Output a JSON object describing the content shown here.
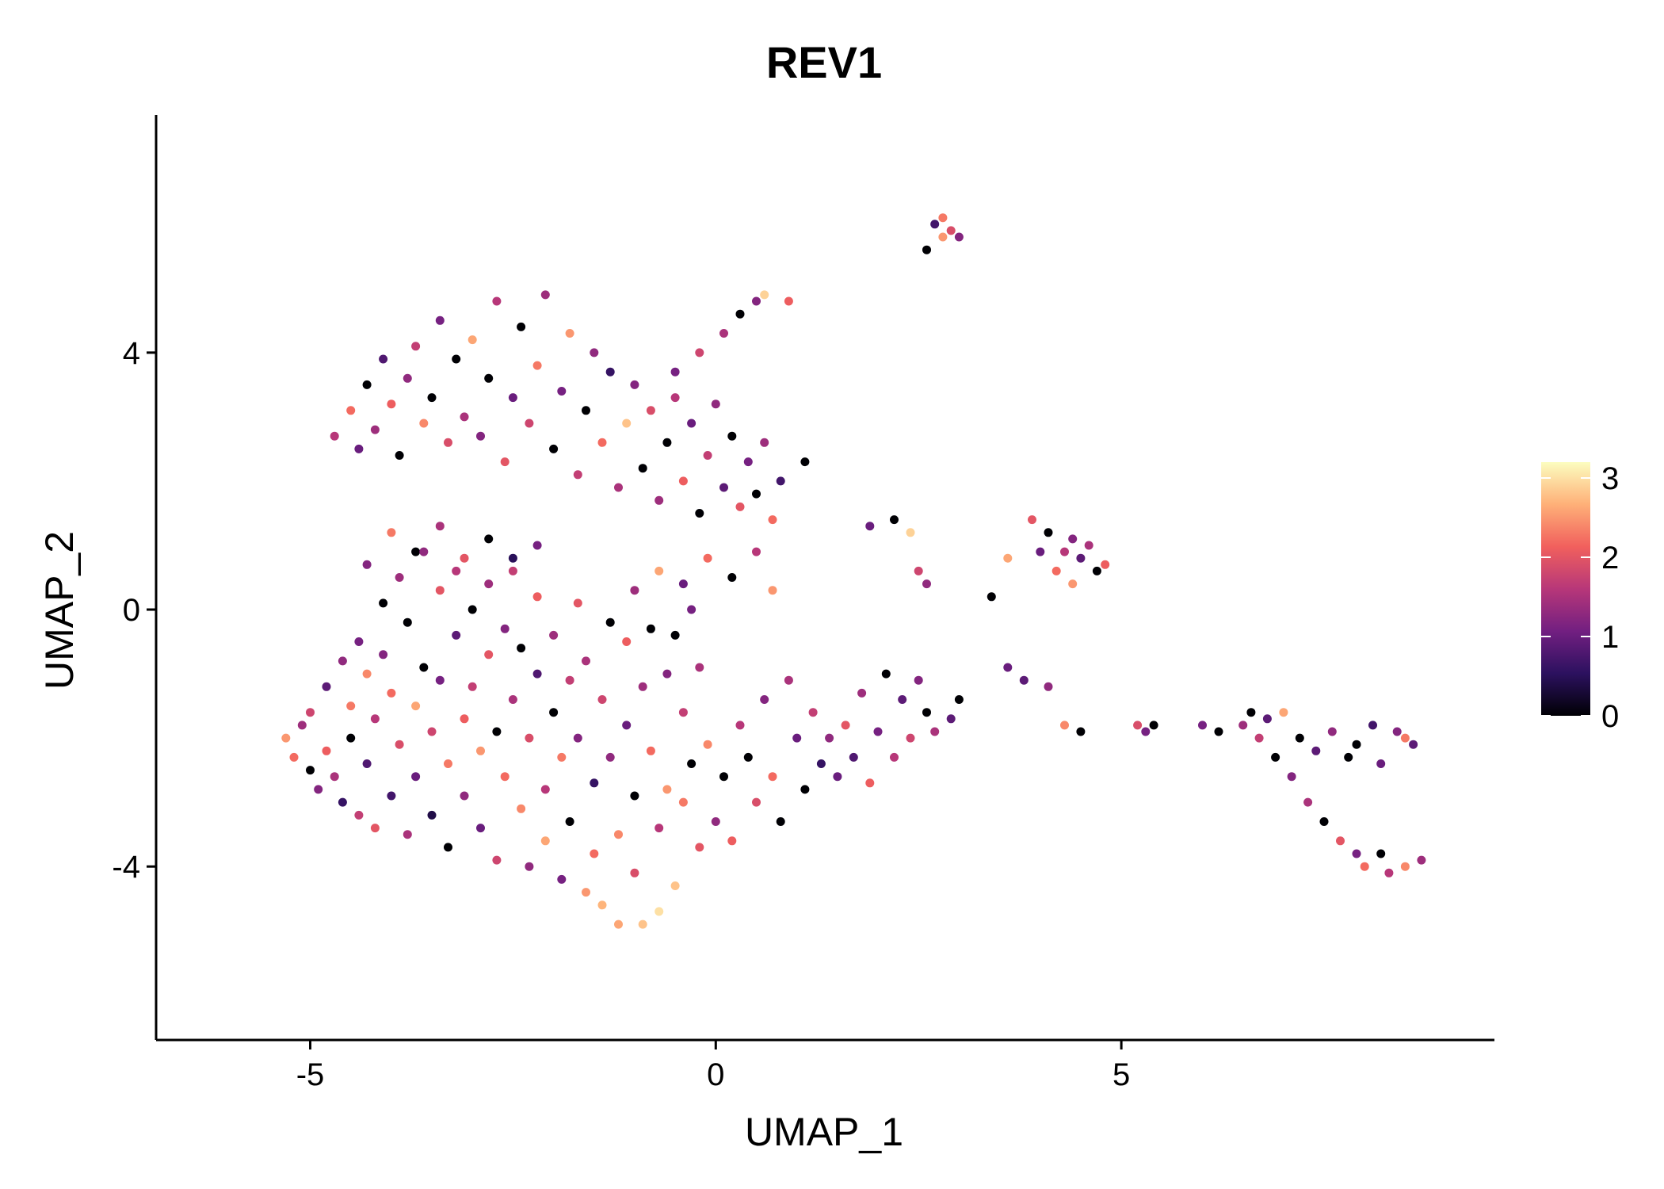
{
  "chart_data": {
    "type": "scatter",
    "title": "REV1",
    "xlabel": "UMAP_1",
    "ylabel": "UMAP_2",
    "xlim": [
      -6.9,
      9.6
    ],
    "ylim": [
      -6.7,
      7.7
    ],
    "x_ticks": [
      -5,
      0,
      5
    ],
    "x_tick_labels": [
      "-5",
      "0",
      "5"
    ],
    "y_ticks": [
      -4,
      0,
      4
    ],
    "y_tick_labels": [
      "-4",
      "0",
      "4"
    ],
    "grid": false,
    "legend": {
      "position": "right",
      "type": "colorbar",
      "min": 0,
      "max": 3.2,
      "ticks": [
        0,
        1,
        2,
        3
      ],
      "tick_labels": [
        "0",
        "1",
        "2",
        "3"
      ],
      "palette": [
        "#000004",
        "#2c115f",
        "#721f81",
        "#b73779",
        "#f1605d",
        "#feb078",
        "#fcfdbf"
      ]
    },
    "point_color_encoding": "expression level (0–3.2)",
    "points": [
      [
        -5.3,
        -2.0,
        2.5
      ],
      [
        -5.2,
        -2.3,
        2.2
      ],
      [
        -5.1,
        -1.8,
        1.4
      ],
      [
        -5.0,
        -2.5,
        0.0
      ],
      [
        -5.0,
        -1.6,
        1.8
      ],
      [
        -4.9,
        -2.8,
        1.2
      ],
      [
        -4.8,
        -2.2,
        2.1
      ],
      [
        -4.8,
        -1.2,
        0.9
      ],
      [
        -4.7,
        -2.6,
        1.5
      ],
      [
        -4.6,
        -3.0,
        0.6
      ],
      [
        -4.6,
        -0.8,
        1.3
      ],
      [
        -4.5,
        -1.5,
        2.3
      ],
      [
        -4.5,
        -2.0,
        0.0
      ],
      [
        -4.4,
        -3.2,
        1.7
      ],
      [
        -4.4,
        -0.5,
        1.1
      ],
      [
        -4.3,
        -1.0,
        2.4
      ],
      [
        -4.3,
        -2.4,
        0.8
      ],
      [
        -4.2,
        -1.7,
        1.6
      ],
      [
        -4.2,
        -3.4,
        2.0
      ],
      [
        -4.1,
        0.1,
        0.0
      ],
      [
        -4.1,
        -0.7,
        1.2
      ],
      [
        -4.0,
        -1.3,
        2.2
      ],
      [
        -4.0,
        -2.9,
        0.7
      ],
      [
        -3.9,
        -2.1,
        1.9
      ],
      [
        -3.9,
        0.5,
        1.4
      ],
      [
        -3.8,
        -0.2,
        0.0
      ],
      [
        -3.8,
        -3.5,
        1.5
      ],
      [
        -3.7,
        -1.5,
        2.6
      ],
      [
        -3.7,
        -2.6,
        1.0
      ],
      [
        -3.6,
        0.9,
        1.3
      ],
      [
        -3.6,
        -0.9,
        0.0
      ],
      [
        -3.5,
        -1.9,
        1.8
      ],
      [
        -3.5,
        -3.2,
        0.4
      ],
      [
        -3.4,
        0.3,
        2.0
      ],
      [
        -3.4,
        -1.1,
        1.1
      ],
      [
        -3.3,
        -2.4,
        2.3
      ],
      [
        -3.3,
        -3.7,
        0.0
      ],
      [
        -3.2,
        0.6,
        1.6
      ],
      [
        -3.2,
        -0.4,
        0.9
      ],
      [
        -3.1,
        -1.7,
        2.1
      ],
      [
        -3.1,
        -2.9,
        1.3
      ],
      [
        -3.0,
        0.0,
        0.0
      ],
      [
        -3.0,
        -1.2,
        1.7
      ],
      [
        -2.9,
        -2.2,
        2.5
      ],
      [
        -2.9,
        -3.4,
        1.0
      ],
      [
        -2.8,
        0.4,
        1.4
      ],
      [
        -2.8,
        -0.7,
        2.0
      ],
      [
        -2.7,
        -1.9,
        0.0
      ],
      [
        -2.7,
        -3.9,
        1.8
      ],
      [
        -2.6,
        -0.3,
        1.2
      ],
      [
        -2.6,
        -2.6,
        2.2
      ],
      [
        -2.5,
        0.8,
        0.5
      ],
      [
        -2.5,
        -1.4,
        1.5
      ],
      [
        -2.4,
        -3.1,
        2.4
      ],
      [
        -2.4,
        -0.6,
        0.0
      ],
      [
        -2.3,
        -2.0,
        1.9
      ],
      [
        -2.3,
        -4.0,
        1.3
      ],
      [
        -2.2,
        0.2,
        2.1
      ],
      [
        -2.2,
        -1.0,
        0.8
      ],
      [
        -2.1,
        -2.8,
        1.6
      ],
      [
        -2.1,
        -3.6,
        2.6
      ],
      [
        -2.0,
        -1.6,
        0.0
      ],
      [
        -2.0,
        -0.4,
        1.4
      ],
      [
        -1.9,
        -2.3,
        2.3
      ],
      [
        -1.9,
        -4.2,
        1.1
      ],
      [
        -1.8,
        -1.1,
        1.7
      ],
      [
        -1.8,
        -3.3,
        0.0
      ],
      [
        -1.7,
        0.1,
        2.0
      ],
      [
        -1.7,
        -2.0,
        1.2
      ],
      [
        -1.6,
        -4.4,
        2.5
      ],
      [
        -1.6,
        -0.8,
        1.5
      ],
      [
        -1.5,
        -2.7,
        0.6
      ],
      [
        -1.5,
        -3.8,
        2.2
      ],
      [
        -1.4,
        -1.4,
        1.8
      ],
      [
        -1.4,
        -4.6,
        2.7
      ],
      [
        -1.3,
        -0.2,
        0.0
      ],
      [
        -1.3,
        -2.3,
        1.3
      ],
      [
        -1.2,
        -3.5,
        2.4
      ],
      [
        -1.2,
        -4.9,
        2.6
      ],
      [
        -1.1,
        -1.8,
        1.0
      ],
      [
        -1.1,
        -0.5,
        2.1
      ],
      [
        -1.0,
        -2.9,
        0.0
      ],
      [
        -1.0,
        -4.1,
        1.9
      ],
      [
        -0.9,
        -4.9,
        2.8
      ],
      [
        -0.9,
        -1.2,
        1.4
      ],
      [
        -0.8,
        -0.3,
        0.0
      ],
      [
        -0.8,
        -2.2,
        2.2
      ],
      [
        -0.7,
        -3.4,
        1.6
      ],
      [
        -0.7,
        -4.7,
        3.0
      ],
      [
        -0.6,
        -1.0,
        1.2
      ],
      [
        -0.6,
        -2.8,
        2.5
      ],
      [
        -0.5,
        -0.4,
        0.0
      ],
      [
        -0.5,
        -4.3,
        2.8
      ],
      [
        -0.4,
        -1.6,
        1.7
      ],
      [
        -0.4,
        -3.0,
        2.3
      ],
      [
        -0.3,
        0.0,
        1.1
      ],
      [
        -0.3,
        -2.4,
        0.0
      ],
      [
        -0.2,
        -3.7,
        2.0
      ],
      [
        -0.2,
        -0.9,
        1.5
      ],
      [
        -0.1,
        -2.1,
        2.4
      ],
      [
        0.0,
        -3.3,
        1.3
      ],
      [
        0.1,
        -2.6,
        0.0
      ],
      [
        0.2,
        -3.6,
        2.1
      ],
      [
        0.3,
        -1.8,
        1.6
      ],
      [
        0.4,
        -2.3,
        0.0
      ],
      [
        0.5,
        -3.0,
        1.9
      ],
      [
        0.6,
        -1.4,
        1.2
      ],
      [
        0.7,
        -2.6,
        2.2
      ],
      [
        0.8,
        -3.3,
        0.0
      ],
      [
        0.9,
        -1.1,
        1.5
      ],
      [
        1.0,
        -2.0,
        1.0
      ],
      [
        1.1,
        -2.8,
        0.0
      ],
      [
        1.2,
        -1.6,
        1.7
      ],
      [
        1.3,
        -2.4,
        0.6
      ],
      [
        1.4,
        -2.0,
        1.3
      ],
      [
        1.5,
        -2.6,
        1.0
      ],
      [
        1.6,
        -1.8,
        2.0
      ],
      [
        1.7,
        -2.3,
        0.8
      ],
      [
        1.8,
        -1.3,
        1.4
      ],
      [
        1.9,
        -2.7,
        2.1
      ],
      [
        2.0,
        -1.9,
        1.1
      ],
      [
        2.1,
        -1.0,
        0.0
      ],
      [
        2.2,
        -2.3,
        1.6
      ],
      [
        2.3,
        -1.4,
        0.9
      ],
      [
        2.4,
        -2.0,
        1.8
      ],
      [
        2.5,
        -1.1,
        1.2
      ],
      [
        2.6,
        -1.6,
        0.0
      ],
      [
        2.7,
        -1.9,
        1.5
      ],
      [
        2.9,
        -1.7,
        0.9
      ],
      [
        3.0,
        -1.4,
        0.0
      ],
      [
        -4.7,
        2.7,
        1.6
      ],
      [
        -4.5,
        3.1,
        2.2
      ],
      [
        -4.4,
        2.5,
        1.0
      ],
      [
        -4.3,
        3.5,
        0.0
      ],
      [
        -4.2,
        2.8,
        1.4
      ],
      [
        -4.1,
        3.9,
        0.8
      ],
      [
        -4.0,
        3.2,
        2.1
      ],
      [
        -3.9,
        2.4,
        0.0
      ],
      [
        -3.8,
        3.6,
        1.3
      ],
      [
        -3.7,
        4.1,
        1.7
      ],
      [
        -3.6,
        2.9,
        2.4
      ],
      [
        -3.5,
        3.3,
        0.0
      ],
      [
        -3.4,
        4.5,
        1.1
      ],
      [
        -3.3,
        2.6,
        1.9
      ],
      [
        -3.2,
        3.9,
        0.0
      ],
      [
        -3.1,
        3.0,
        1.5
      ],
      [
        -3.0,
        4.2,
        2.6
      ],
      [
        -2.9,
        2.7,
        1.2
      ],
      [
        -2.8,
        3.6,
        0.0
      ],
      [
        -2.7,
        4.8,
        1.6
      ],
      [
        -2.6,
        2.3,
        2.0
      ],
      [
        -2.5,
        3.3,
        1.0
      ],
      [
        -2.4,
        4.4,
        0.0
      ],
      [
        -2.3,
        2.9,
        1.8
      ],
      [
        -2.2,
        3.8,
        2.3
      ],
      [
        -2.1,
        4.9,
        1.4
      ],
      [
        -2.0,
        2.5,
        0.0
      ],
      [
        -1.9,
        3.4,
        1.1
      ],
      [
        -1.8,
        4.3,
        2.5
      ],
      [
        -1.7,
        2.1,
        1.7
      ],
      [
        -1.6,
        3.1,
        0.0
      ],
      [
        -1.5,
        4.0,
        1.3
      ],
      [
        -1.4,
        2.6,
        2.2
      ],
      [
        -1.3,
        3.7,
        0.6
      ],
      [
        -1.2,
        1.9,
        1.5
      ],
      [
        -1.1,
        2.9,
        2.8
      ],
      [
        -1.0,
        3.5,
        1.2
      ],
      [
        -0.9,
        2.2,
        0.0
      ],
      [
        -0.8,
        3.1,
        1.9
      ],
      [
        -0.7,
        1.7,
        1.4
      ],
      [
        -0.6,
        2.6,
        0.0
      ],
      [
        -0.5,
        3.3,
        1.6
      ],
      [
        -0.4,
        2.0,
        2.1
      ],
      [
        -0.3,
        2.9,
        1.0
      ],
      [
        -0.2,
        1.5,
        0.0
      ],
      [
        -0.1,
        2.4,
        1.7
      ],
      [
        0.0,
        3.2,
        1.3
      ],
      [
        0.1,
        1.9,
        0.9
      ],
      [
        0.2,
        2.7,
        0.0
      ],
      [
        0.3,
        1.6,
        2.0
      ],
      [
        0.4,
        2.3,
        1.1
      ],
      [
        0.5,
        1.8,
        0.0
      ],
      [
        0.6,
        2.6,
        1.4
      ],
      [
        0.7,
        1.4,
        2.2
      ],
      [
        0.8,
        2.0,
        0.7
      ],
      [
        1.1,
        2.3,
        0.0
      ],
      [
        -4.3,
        0.7,
        1.2
      ],
      [
        -4.0,
        1.2,
        2.3
      ],
      [
        -3.7,
        0.9,
        0.0
      ],
      [
        -3.4,
        1.3,
        1.5
      ],
      [
        -3.1,
        0.8,
        2.0
      ],
      [
        -2.8,
        1.1,
        0.0
      ],
      [
        -2.5,
        0.6,
        1.7
      ],
      [
        -2.2,
        1.0,
        1.1
      ],
      [
        -1.0,
        0.3,
        1.4
      ],
      [
        -0.7,
        0.6,
        2.6
      ],
      [
        -0.4,
        0.4,
        1.0
      ],
      [
        -0.1,
        0.8,
        2.2
      ],
      [
        0.2,
        0.5,
        0.0
      ],
      [
        0.5,
        0.9,
        1.6
      ],
      [
        0.7,
        0.3,
        2.5
      ],
      [
        0.6,
        4.9,
        2.9
      ],
      [
        0.5,
        4.8,
        1.2
      ],
      [
        0.3,
        4.6,
        0.0
      ],
      [
        0.1,
        4.3,
        1.5
      ],
      [
        -0.2,
        4.0,
        1.8
      ],
      [
        -0.5,
        3.7,
        1.1
      ],
      [
        0.9,
        4.8,
        2.1
      ],
      [
        2.8,
        6.1,
        2.3
      ],
      [
        2.7,
        6.0,
        0.7
      ],
      [
        2.9,
        5.9,
        1.9
      ],
      [
        3.0,
        5.8,
        1.2
      ],
      [
        2.6,
        5.6,
        0.0
      ],
      [
        2.8,
        5.8,
        2.5
      ],
      [
        1.9,
        1.3,
        1.0
      ],
      [
        2.2,
        1.4,
        0.0
      ],
      [
        2.4,
        1.2,
        2.9
      ],
      [
        2.5,
        0.6,
        1.8
      ],
      [
        2.6,
        0.4,
        1.3
      ],
      [
        3.4,
        0.2,
        0.0
      ],
      [
        3.6,
        0.8,
        2.6
      ],
      [
        3.9,
        1.4,
        2.0
      ],
      [
        4.0,
        0.9,
        1.0
      ],
      [
        4.1,
        1.2,
        0.0
      ],
      [
        4.2,
        0.6,
        2.2
      ],
      [
        4.3,
        0.9,
        1.6
      ],
      [
        4.4,
        0.4,
        2.5
      ],
      [
        4.5,
        0.8,
        0.9
      ],
      [
        4.6,
        1.0,
        1.5
      ],
      [
        4.7,
        0.6,
        0.0
      ],
      [
        4.8,
        0.7,
        2.1
      ],
      [
        4.4,
        1.1,
        1.2
      ],
      [
        3.6,
        -0.9,
        1.0
      ],
      [
        3.8,
        -1.1,
        0.9
      ],
      [
        4.1,
        -1.2,
        1.3
      ],
      [
        4.3,
        -1.8,
        2.4
      ],
      [
        4.5,
        -1.9,
        0.0
      ],
      [
        5.3,
        -1.9,
        1.1
      ],
      [
        5.4,
        -1.8,
        0.0
      ],
      [
        5.2,
        -1.8,
        1.9
      ],
      [
        6.0,
        -1.8,
        1.1
      ],
      [
        6.2,
        -1.9,
        0.0
      ],
      [
        6.5,
        -1.8,
        1.4
      ],
      [
        6.6,
        -1.6,
        0.0
      ],
      [
        6.7,
        -2.0,
        1.7
      ],
      [
        6.8,
        -1.7,
        0.9
      ],
      [
        6.9,
        -2.3,
        0.0
      ],
      [
        7.0,
        -1.6,
        2.6
      ],
      [
        7.1,
        -2.6,
        1.2
      ],
      [
        7.2,
        -2.0,
        0.0
      ],
      [
        7.3,
        -3.0,
        1.5
      ],
      [
        7.4,
        -2.2,
        0.9
      ],
      [
        7.5,
        -3.3,
        0.0
      ],
      [
        7.6,
        -1.9,
        1.3
      ],
      [
        7.7,
        -3.6,
        2.0
      ],
      [
        7.8,
        -2.3,
        0.0
      ],
      [
        7.9,
        -3.8,
        1.1
      ],
      [
        8.0,
        -4.0,
        2.2
      ],
      [
        8.1,
        -1.8,
        0.7
      ],
      [
        8.2,
        -3.8,
        0.0
      ],
      [
        8.3,
        -4.1,
        1.6
      ],
      [
        8.4,
        -1.9,
        1.2
      ],
      [
        8.5,
        -4.0,
        2.4
      ],
      [
        8.6,
        -2.1,
        0.9
      ],
      [
        8.7,
        -3.9,
        1.4
      ],
      [
        7.9,
        -2.1,
        0.0
      ],
      [
        8.2,
        -2.4,
        1.0
      ],
      [
        8.5,
        -2.0,
        2.3
      ]
    ]
  }
}
